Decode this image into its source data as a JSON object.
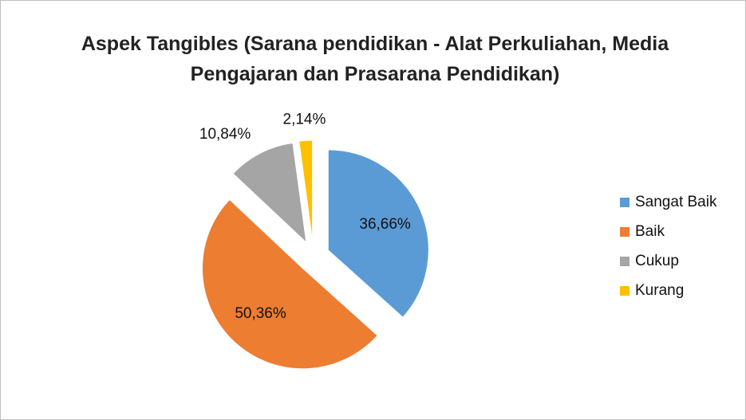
{
  "chart_data": {
    "type": "pie",
    "title": "Aspek Tangibles (Sarana pendidikan - Alat Perkuliahan, Media Pengajaran dan Prasarana Pendidikan)",
    "categories": [
      "Sangat Baik",
      "Baik",
      "Cukup",
      "Kurang"
    ],
    "values": [
      36.66,
      50.36,
      10.84,
      2.14
    ],
    "value_labels": [
      "36,66%",
      "50,36%",
      "10,84%",
      "2,14%"
    ],
    "colors": [
      "#5b9bd5",
      "#ed7d31",
      "#a5a5a5",
      "#ffc000"
    ],
    "legend": "right",
    "exploded": true
  }
}
